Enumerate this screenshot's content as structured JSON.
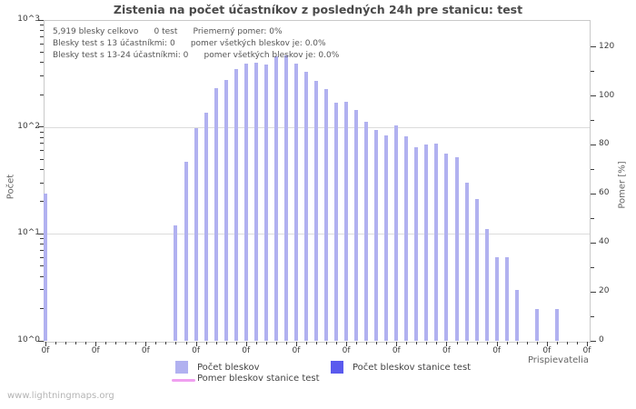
{
  "page": {
    "watermark": "www.lightningmaps.org"
  },
  "chart": {
    "title": "Zistenia na počet účastníkov z posledných 24h pre stanicu: test",
    "stats_lines": [
      "5,919 blesky celkovo      0 test      Priemerný pomer: 0%",
      "Blesky test s 13 účastníkmi: 0      pomer všetkých bleskov je: 0.0%",
      "Blesky test s 13-24 účastníkmi: 0      pomer všetkých bleskov je: 0.0%"
    ],
    "ylabel_left": "Počet",
    "ylabel_right": "Pomer [%]",
    "xlabel": "Prispievatelia",
    "legend": [
      {
        "label": "Počet bleskov",
        "color": "#b1b1f0",
        "type": "box"
      },
      {
        "label": "Počet bleskov stanice test",
        "color": "#5a5aee",
        "type": "box"
      },
      {
        "label": "Pomer bleskov stanice test",
        "color": "#f0a0f0",
        "type": "line"
      }
    ]
  },
  "chart_data": {
    "type": "bar",
    "title": "Zistenia na počet účastníkov z posledných 24h pre stanicu: test",
    "total_flashes": 5919,
    "station_flashes": 0,
    "average_ratio_percent": 0,
    "y_axis_left": {
      "label": "Počet",
      "scale": "log",
      "ticks": [
        "10^0",
        "10^1",
        "10^2",
        "10^3"
      ],
      "range": [
        1,
        1000
      ]
    },
    "y_axis_right": {
      "label": "Pomer [%]",
      "ticks": [
        0,
        20,
        40,
        60,
        80,
        100,
        120
      ],
      "minor_step": 10
    },
    "x_axis": {
      "label": "Prispievatelia",
      "tick_label": "0f",
      "tick_count": 55,
      "major_every": 5
    },
    "grid_decades": [
      1,
      2
    ],
    "bars": [
      {
        "i": 0,
        "v": 24
      },
      {
        "i": 13,
        "v": 12
      },
      {
        "i": 14,
        "v": 47
      },
      {
        "i": 15,
        "v": 97
      },
      {
        "i": 16,
        "v": 135
      },
      {
        "i": 17,
        "v": 230
      },
      {
        "i": 18,
        "v": 275
      },
      {
        "i": 19,
        "v": 350
      },
      {
        "i": 20,
        "v": 390
      },
      {
        "i": 21,
        "v": 400
      },
      {
        "i": 22,
        "v": 382
      },
      {
        "i": 23,
        "v": 455
      },
      {
        "i": 24,
        "v": 465
      },
      {
        "i": 25,
        "v": 390
      },
      {
        "i": 26,
        "v": 327
      },
      {
        "i": 27,
        "v": 269
      },
      {
        "i": 28,
        "v": 225
      },
      {
        "i": 29,
        "v": 170
      },
      {
        "i": 30,
        "v": 172
      },
      {
        "i": 31,
        "v": 145
      },
      {
        "i": 32,
        "v": 112
      },
      {
        "i": 33,
        "v": 94
      },
      {
        "i": 34,
        "v": 83
      },
      {
        "i": 35,
        "v": 104
      },
      {
        "i": 36,
        "v": 81
      },
      {
        "i": 37,
        "v": 64
      },
      {
        "i": 38,
        "v": 68
      },
      {
        "i": 39,
        "v": 70
      },
      {
        "i": 40,
        "v": 56
      },
      {
        "i": 41,
        "v": 52
      },
      {
        "i": 42,
        "v": 30
      },
      {
        "i": 43,
        "v": 21
      },
      {
        "i": 44,
        "v": 11
      },
      {
        "i": 45,
        "v": 6
      },
      {
        "i": 46,
        "v": 6
      },
      {
        "i": 47,
        "v": 3
      },
      {
        "i": 49,
        "v": 2
      },
      {
        "i": 51,
        "v": 2
      }
    ],
    "series": [
      {
        "name": "Počet bleskov",
        "role": "bars-total"
      },
      {
        "name": "Počet bleskov stanice test",
        "role": "bars-station",
        "all_values": 0
      },
      {
        "name": "Pomer bleskov stanice test",
        "role": "ratio-line",
        "all_values_percent": 0
      }
    ],
    "colors": {
      "bar_total": "#b1b1f0",
      "bar_station": "#5a5aee",
      "ratio_line": "#f0a0f0",
      "grid": "#dcdcdc",
      "plot_border": "#c9c9c9"
    }
  }
}
